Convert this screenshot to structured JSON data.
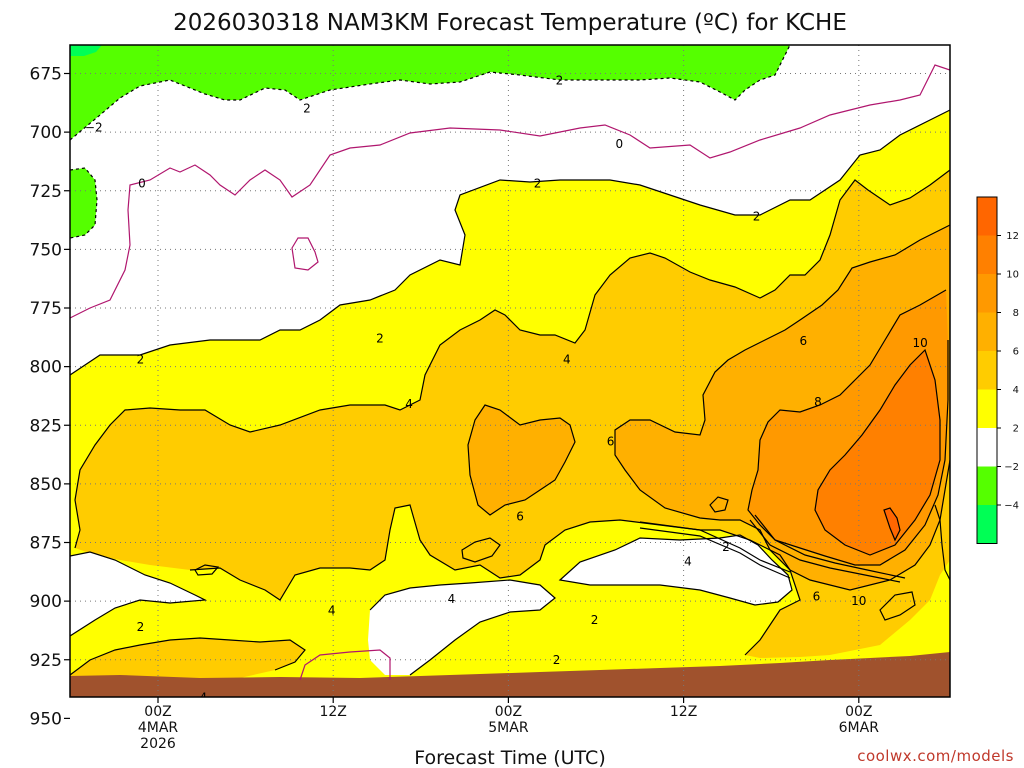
{
  "chart_data": {
    "type": "heatmap",
    "title": "2026030318 NAM3KM Forecast Temperature (ºC) for KCHE",
    "xlabel": "Forecast Time (UTC)",
    "ylabel": "Pressure (hPa)",
    "credit": "coolwx.com/models",
    "y_ticks": [
      "675",
      "700",
      "725",
      "750",
      "775",
      "800",
      "825",
      "850",
      "875",
      "900",
      "925",
      "950"
    ],
    "y_range": [
      663,
      960
    ],
    "x_range_hours": [
      -6,
      48
    ],
    "x_ticks": [
      {
        "hour": 0,
        "lines": [
          "00Z",
          "4MAR",
          "2026"
        ]
      },
      {
        "hour": 12,
        "lines": [
          "12Z"
        ]
      },
      {
        "hour": 24,
        "lines": [
          "00Z",
          "5MAR"
        ]
      },
      {
        "hour": 36,
        "lines": [
          "12Z"
        ]
      },
      {
        "hour": 48,
        "lines": [
          "00Z",
          "6MAR"
        ]
      }
    ],
    "colorbar": {
      "labels": [
        "12",
        "10",
        "8",
        "6",
        "4",
        "2",
        "−2",
        "−4"
      ],
      "bins": [
        {
          "range": "12 to 14",
          "color": "#ff6600"
        },
        {
          "range": "10 to 12",
          "color": "#ff8000"
        },
        {
          "range": "8 to 10",
          "color": "#ff9900"
        },
        {
          "range": "6 to 8",
          "color": "#ffb000"
        },
        {
          "range": "4 to 6",
          "color": "#ffcc00"
        },
        {
          "range": "2 to 4",
          "color": "#ffff00"
        },
        {
          "range": "-2 to 2",
          "color": "#ffffff"
        },
        {
          "range": "-4 to -2",
          "color": "#55ff00"
        },
        {
          "range": "-6 to -4",
          "color": "#00ff55"
        }
      ]
    },
    "ground_color": "#a0522d",
    "contour_labels": [
      {
        "text": "2",
        "hour": 27.5,
        "p": 678
      },
      {
        "text": "2",
        "hour": 10.2,
        "p": 690
      },
      {
        "text": "−2",
        "hour": -4.4,
        "p": 698
      },
      {
        "text": "0",
        "hour": 31.6,
        "p": 705
      },
      {
        "text": "0",
        "hour": -1.1,
        "p": 722
      },
      {
        "text": "2",
        "hour": 26.0,
        "p": 722
      },
      {
        "text": "2",
        "hour": 41.0,
        "p": 736
      },
      {
        "text": "2",
        "hour": 15.2,
        "p": 788
      },
      {
        "text": "2",
        "hour": -1.2,
        "p": 797
      },
      {
        "text": "4",
        "hour": 28.0,
        "p": 797
      },
      {
        "text": "6",
        "hour": 44.2,
        "p": 789
      },
      {
        "text": "10",
        "hour": 52.2,
        "p": 790
      },
      {
        "text": "8",
        "hour": 45.2,
        "p": 815
      },
      {
        "text": "4",
        "hour": 17.2,
        "p": 816
      },
      {
        "text": "6",
        "hour": 31.0,
        "p": 832
      },
      {
        "text": "6",
        "hour": 24.8,
        "p": 864
      },
      {
        "text": "2",
        "hour": 38.9,
        "p": 877
      },
      {
        "text": "4",
        "hour": 36.3,
        "p": 883
      },
      {
        "text": "6",
        "hour": 45.1,
        "p": 898
      },
      {
        "text": "10",
        "hour": 48.0,
        "p": 900
      },
      {
        "text": "4",
        "hour": 11.9,
        "p": 904
      },
      {
        "text": "4",
        "hour": 20.1,
        "p": 899
      },
      {
        "text": "2",
        "hour": -1.2,
        "p": 911
      },
      {
        "text": "2",
        "hour": 29.9,
        "p": 908
      },
      {
        "text": "2",
        "hour": 27.3,
        "p": 925
      },
      {
        "text": "4",
        "hour": 3.1,
        "p": 941
      },
      {
        "text": "2",
        "hour": 12.9,
        "p": 955
      }
    ]
  }
}
